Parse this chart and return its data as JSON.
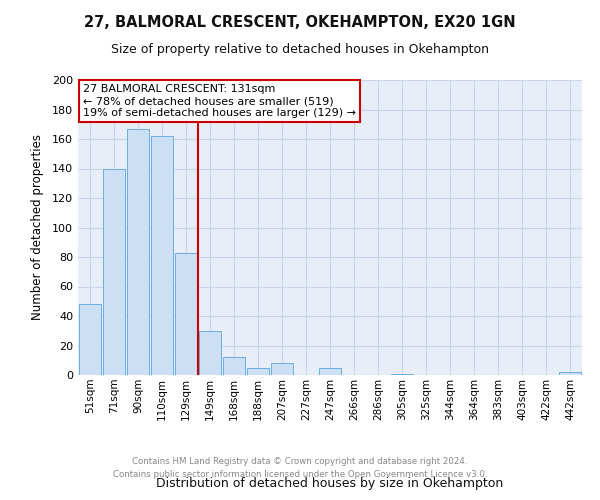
{
  "title": "27, BALMORAL CRESCENT, OKEHAMPTON, EX20 1GN",
  "subtitle": "Size of property relative to detached houses in Okehampton",
  "xlabel": "Distribution of detached houses by size in Okehampton",
  "ylabel": "Number of detached properties",
  "bar_labels": [
    "51sqm",
    "71sqm",
    "90sqm",
    "110sqm",
    "129sqm",
    "149sqm",
    "168sqm",
    "188sqm",
    "207sqm",
    "227sqm",
    "247sqm",
    "266sqm",
    "286sqm",
    "305sqm",
    "325sqm",
    "344sqm",
    "364sqm",
    "383sqm",
    "403sqm",
    "422sqm",
    "442sqm"
  ],
  "bar_values": [
    48,
    140,
    167,
    162,
    83,
    30,
    12,
    5,
    8,
    0,
    5,
    0,
    0,
    1,
    0,
    0,
    0,
    0,
    0,
    0,
    2
  ],
  "bar_color": "#ccdff5",
  "bar_edge_color": "#6aaee0",
  "highlight_index": 4,
  "highlight_line_color": "#cc0000",
  "ylim": [
    0,
    200
  ],
  "yticks": [
    0,
    20,
    40,
    60,
    80,
    100,
    120,
    140,
    160,
    180,
    200
  ],
  "annotation_title": "27 BALMORAL CRESCENT: 131sqm",
  "annotation_line1": "← 78% of detached houses are smaller (519)",
  "annotation_line2": "19% of semi-detached houses are larger (129) →",
  "annotation_box_color": "#ffffff",
  "annotation_box_edge": "#cc0000",
  "footer_line1": "Contains HM Land Registry data © Crown copyright and database right 2024.",
  "footer_line2": "Contains public sector information licensed under the Open Government Licence v3.0.",
  "background_color": "#ffffff",
  "grid_color": "#c8d4e8",
  "axes_bg_color": "#e8eef8"
}
